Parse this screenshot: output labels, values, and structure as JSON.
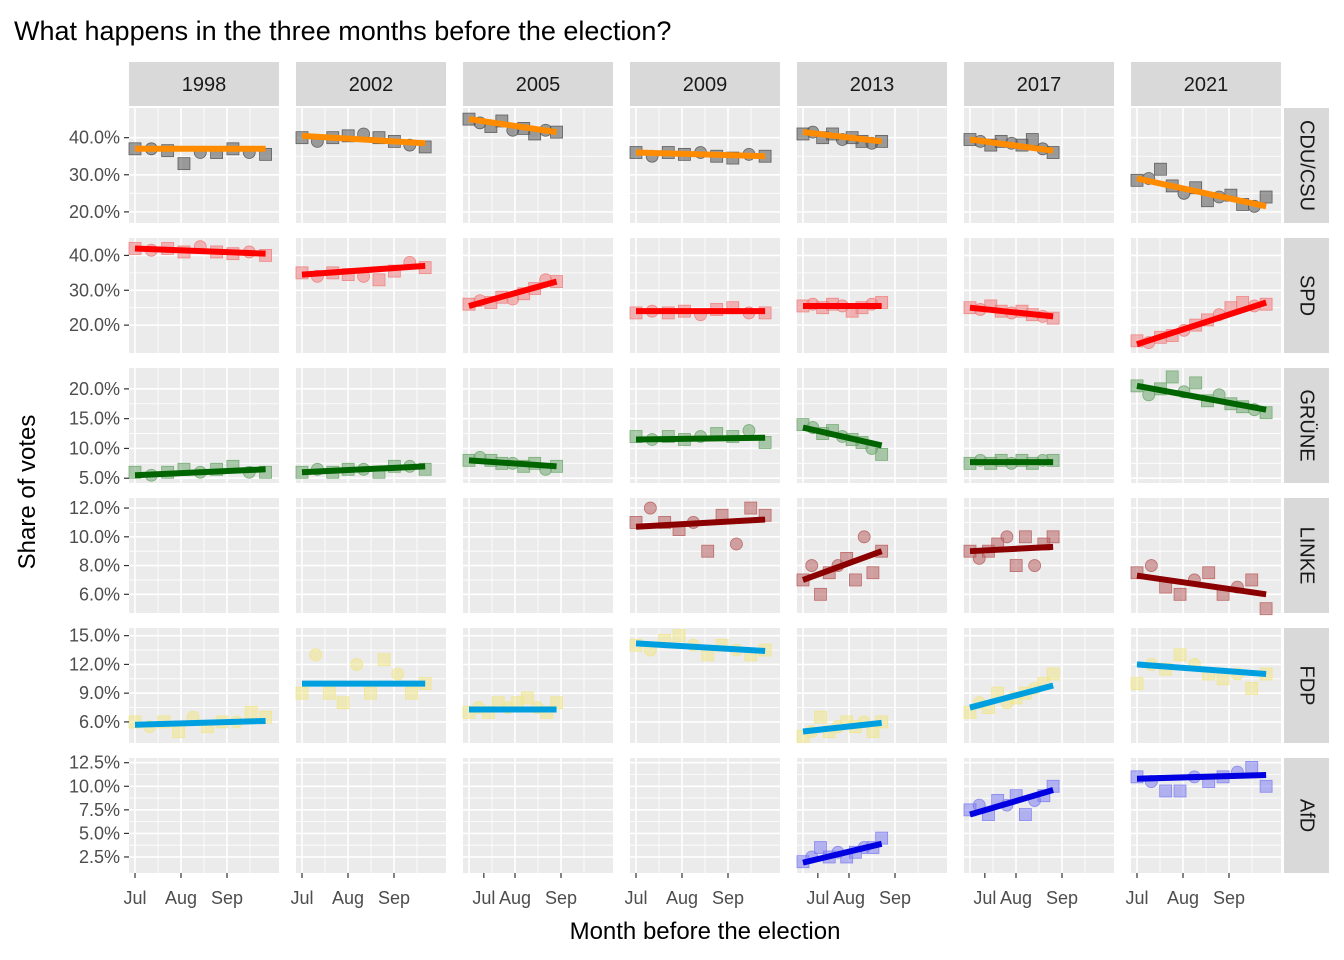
{
  "title": "What happens in the three months before the election?",
  "chart_data": {
    "type": "scatter",
    "layout": "facet-grid",
    "title": "What happens in the three months before the election?",
    "xlabel": "Month before the election",
    "ylabel": "Share of votes",
    "x_ticks": [
      "Jul",
      "Aug",
      "Sep"
    ],
    "years": [
      "1998",
      "2002",
      "2005",
      "2009",
      "2013",
      "2017",
      "2021"
    ],
    "election_day_offset": {
      "1998": 88,
      "2002": 83,
      "2005": 59,
      "2009": 87,
      "2013": 53,
      "2017": 56,
      "2021": 87
    },
    "marker_note": "points drawn as squares and circles",
    "parties": [
      {
        "name": "CDU/CSU",
        "trend_color": "#FF8C00",
        "point_color": "#555555",
        "y_ticks": [
          "20.0%",
          "30.0%",
          "40.0%"
        ],
        "tick_values": [
          20,
          30,
          40
        ],
        "ylim": [
          17,
          48
        ],
        "trends": {
          "1998": [
            37,
            37
          ],
          "2002": [
            40.5,
            38.5
          ],
          "2005": [
            45,
            41.5
          ],
          "2009": [
            36,
            35
          ],
          "2013": [
            41.5,
            39
          ],
          "2017": [
            39.5,
            36.5
          ],
          "2021": [
            29,
            21.5
          ]
        },
        "observations": {
          "1998": [
            [
              37,
              37,
              36.5,
              33,
              36,
              36,
              37,
              36,
              35.5
            ]
          ],
          "2002": [
            [
              40,
              39,
              40,
              40.5,
              41,
              40,
              39,
              38,
              37.5
            ]
          ],
          "2005": [
            [
              45,
              44,
              43,
              44.5,
              42,
              42.5,
              41,
              42,
              41.5
            ]
          ],
          "2009": [
            [
              36,
              35,
              36,
              35.5,
              36,
              35,
              34.5,
              35.5,
              35
            ]
          ],
          "2013": [
            [
              41,
              41.5,
              40,
              41,
              39.5,
              40,
              39,
              38.5,
              39
            ]
          ],
          "2017": [
            [
              39.5,
              39,
              38,
              39,
              38.5,
              38,
              39.5,
              37,
              36
            ]
          ],
          "2021": [
            [
              28.5,
              29,
              31.5,
              27,
              25,
              26.5,
              23,
              24,
              24.5,
              22,
              21.5,
              24
            ]
          ]
        }
      },
      {
        "name": "SPD",
        "trend_color": "#FF0000",
        "point_color": "#F08080",
        "y_ticks": [
          "20.0%",
          "30.0%",
          "40.0%"
        ],
        "tick_values": [
          20,
          30,
          40
        ],
        "ylim": [
          12,
          45
        ],
        "trends": {
          "1998": [
            42,
            40.5
          ],
          "2002": [
            34.5,
            37
          ],
          "2005": [
            25.5,
            32.5
          ],
          "2009": [
            24,
            24
          ],
          "2013": [
            25.5,
            25.5
          ],
          "2017": [
            25,
            22.5
          ],
          "2021": [
            14.5,
            26.5
          ]
        },
        "observations": {
          "1998": [
            [
              42,
              41.5,
              42,
              41,
              42.5,
              41,
              40.5,
              41,
              40
            ]
          ],
          "2002": [
            [
              35,
              34,
              35,
              34.5,
              34,
              33,
              35.5,
              38,
              36.5
            ]
          ],
          "2005": [
            [
              26,
              27,
              26.5,
              28,
              27.5,
              29,
              30.5,
              33,
              32.5
            ]
          ],
          "2009": [
            [
              23.5,
              24,
              23.5,
              24,
              23,
              24.5,
              25,
              23.5,
              23.5
            ]
          ],
          "2013": [
            [
              25.5,
              26,
              25,
              26,
              25.5,
              24,
              25,
              26,
              26.5
            ]
          ],
          "2017": [
            [
              25,
              24.5,
              25.5,
              24,
              23.5,
              24,
              23,
              22.5,
              22
            ]
          ],
          "2021": [
            [
              15.5,
              15,
              16.5,
              17,
              18.5,
              20,
              21.5,
              23,
              25,
              26.5,
              25.5,
              26
            ]
          ]
        }
      },
      {
        "name": "GRÜNE",
        "trend_color": "#006400",
        "point_color": "#6FA86F",
        "y_ticks": [
          "5.0%",
          "10.0%",
          "15.0%",
          "20.0%"
        ],
        "tick_values": [
          5,
          10,
          15,
          20
        ],
        "ylim": [
          4.2,
          23.5
        ],
        "trends": {
          "1998": [
            5.5,
            6.5
          ],
          "2002": [
            6,
            7
          ],
          "2005": [
            8,
            7
          ],
          "2009": [
            11.5,
            11.8
          ],
          "2013": [
            13.5,
            10.5
          ],
          "2017": [
            7.7,
            7.7
          ],
          "2021": [
            20.5,
            16.5
          ]
        },
        "observations": {
          "1998": [
            [
              6,
              5.5,
              6,
              6.5,
              6,
              6.5,
              7,
              6,
              6
            ]
          ],
          "2002": [
            [
              6,
              6.5,
              6,
              6.5,
              6.5,
              6,
              7,
              7,
              6.5
            ]
          ],
          "2005": [
            [
              8,
              8.5,
              8,
              7.5,
              7.5,
              7,
              7.5,
              6.5,
              7
            ]
          ],
          "2009": [
            [
              12,
              11.5,
              12,
              11.5,
              12,
              12.5,
              12,
              13,
              11
            ]
          ],
          "2013": [
            [
              14,
              13.5,
              12.5,
              13,
              12,
              11.5,
              11,
              10,
              9
            ]
          ],
          "2017": [
            [
              7.5,
              8,
              7.5,
              8,
              7.5,
              8,
              7.5,
              8,
              8
            ]
          ],
          "2021": [
            [
              20.5,
              19,
              20,
              22,
              19.5,
              21,
              18,
              19,
              17.5,
              17,
              16.5,
              16
            ]
          ]
        }
      },
      {
        "name": "LINKE",
        "trend_color": "#8B0000",
        "point_color": "#B86060",
        "y_ticks": [
          "6.0%",
          "8.0%",
          "10.0%",
          "12.0%"
        ],
        "tick_values": [
          6,
          8,
          10,
          12
        ],
        "ylim": [
          4.7,
          12.7
        ],
        "trends": {
          "2009": [
            10.7,
            11.2
          ],
          "2013": [
            7,
            9
          ],
          "2017": [
            9,
            9.3
          ],
          "2021": [
            7.3,
            6
          ]
        },
        "observations": {
          "2009": [
            [
              11,
              12,
              11,
              10.5,
              11,
              9,
              11.5,
              9.5,
              12,
              11.5
            ]
          ],
          "2013": [
            [
              7,
              8,
              6,
              7.5,
              8,
              8.5,
              7,
              10,
              7.5,
              9
            ]
          ],
          "2017": [
            [
              9,
              8.5,
              9,
              9.5,
              10,
              8,
              10,
              8,
              9.5,
              10
            ]
          ],
          "2021": [
            [
              7.5,
              8,
              6.5,
              6,
              7,
              7.5,
              6,
              6.5,
              7,
              5
            ]
          ]
        }
      },
      {
        "name": "FDP",
        "trend_color": "#00A0E0",
        "point_color": "#F0E68C",
        "y_ticks": [
          "6.0%",
          "9.0%",
          "12.0%",
          "15.0%"
        ],
        "tick_values": [
          6,
          9,
          12,
          15
        ],
        "ylim": [
          3.8,
          15.8
        ],
        "trends": {
          "1998": [
            5.7,
            6.1
          ],
          "2002": [
            10,
            10
          ],
          "2005": [
            7.3,
            7.3
          ],
          "2009": [
            14.2,
            13.4
          ],
          "2013": [
            5,
            5.9
          ],
          "2017": [
            7.5,
            9.8
          ],
          "2021": [
            12,
            11
          ]
        },
        "observations": {
          "1998": [
            [
              6,
              5.5,
              6,
              5,
              6.5,
              5.5,
              6,
              6,
              7,
              6.5
            ]
          ],
          "2002": [
            [
              9,
              13,
              9,
              8,
              12,
              9,
              12.5,
              11,
              9,
              10
            ]
          ],
          "2005": [
            [
              7,
              7.5,
              7,
              8,
              7.5,
              8,
              8.5,
              7.5,
              7,
              8
            ]
          ],
          "2009": [
            [
              14,
              13.5,
              14.5,
              15,
              14,
              13,
              14,
              13.5,
              13,
              13.5
            ]
          ],
          "2013": [
            [
              4.5,
              5,
              6.5,
              5,
              5.5,
              6,
              5.5,
              6,
              5,
              6
            ]
          ],
          "2017": [
            [
              7,
              8,
              7.5,
              9,
              8,
              8.5,
              9,
              9.5,
              10,
              11
            ]
          ],
          "2021": [
            [
              10,
              12,
              11.5,
              13,
              12,
              11,
              10.5,
              11,
              9.5,
              11
            ]
          ]
        }
      },
      {
        "name": "AfD",
        "trend_color": "#0000E0",
        "point_color": "#8080F0",
        "y_ticks": [
          "2.5%",
          "5.0%",
          "7.5%",
          "10.0%",
          "12.5%"
        ],
        "tick_values": [
          2.5,
          5,
          7.5,
          10,
          12.5
        ],
        "ylim": [
          0.8,
          13
        ],
        "trends": {
          "2013": [
            1.9,
            3.9
          ],
          "2017": [
            7,
            9.6
          ],
          "2021": [
            10.8,
            11.2
          ]
        },
        "observations": {
          "2013": [
            [
              2,
              2.5,
              3.5,
              2.5,
              3,
              2.5,
              3,
              3.5,
              3.5,
              4.5
            ]
          ],
          "2017": [
            [
              7.5,
              8,
              7,
              8.5,
              8,
              9,
              7,
              8.5,
              9,
              10
            ]
          ],
          "2021": [
            [
              11,
              10.5,
              9.5,
              9.5,
              11,
              10.5,
              11,
              11.5,
              12,
              10
            ]
          ]
        }
      }
    ]
  }
}
